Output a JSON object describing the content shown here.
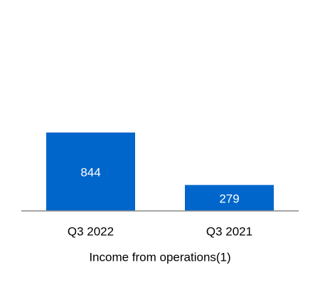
{
  "chart_data": {
    "type": "bar",
    "x_label": "Income from operations(1)",
    "categories": [
      "Q3 2022",
      "Q3 2021"
    ],
    "values": [
      844,
      279
    ],
    "color": "#0066cc"
  }
}
